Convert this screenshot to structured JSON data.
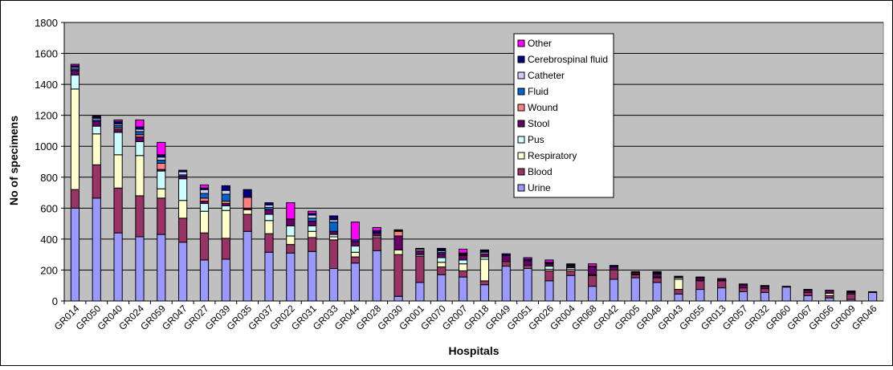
{
  "chart_data": {
    "type": "bar",
    "stacked": true,
    "title": "",
    "xlabel": "Hospitals",
    "ylabel": "No of specimens",
    "ylim": [
      0,
      1800
    ],
    "yticks": [
      0,
      200,
      400,
      600,
      800,
      1000,
      1200,
      1400,
      1600,
      1800
    ],
    "grid": "horizontal",
    "plot_background": "#C0C0C0",
    "legend_position": "top-right (inside plot)",
    "categories": [
      "GR014",
      "GR050",
      "GR040",
      "GR024",
      "GR059",
      "GR047",
      "GR027",
      "GR039",
      "GR035",
      "GR037",
      "GR022",
      "GR031",
      "GR033",
      "GR044",
      "GR028",
      "GR030",
      "GR001",
      "GR070",
      "GR007",
      "GR018",
      "GR049",
      "GR051",
      "GR026",
      "GR004",
      "GR068",
      "GR042",
      "GR005",
      "GR048",
      "GR043",
      "GR055",
      "GR013",
      "GR057",
      "GR032",
      "GR060",
      "GR067",
      "GR056",
      "GR009",
      "GR046"
    ],
    "series": [
      {
        "name": "Urine",
        "color": "#9999FF",
        "values": [
          600,
          665,
          440,
          415,
          430,
          380,
          265,
          270,
          450,
          315,
          310,
          320,
          210,
          245,
          325,
          30,
          120,
          170,
          155,
          105,
          225,
          210,
          130,
          165,
          95,
          140,
          150,
          120,
          45,
          75,
          85,
          60,
          55,
          90,
          35,
          20,
          10,
          55
        ]
      },
      {
        "name": "Blood",
        "color": "#993366",
        "values": [
          120,
          215,
          290,
          265,
          235,
          155,
          175,
          135,
          110,
          120,
          55,
          90,
          185,
          40,
          85,
          270,
          170,
          50,
          40,
          25,
          30,
          20,
          65,
          30,
          70,
          60,
          20,
          30,
          30,
          55,
          45,
          25,
          25,
          0,
          20,
          15,
          35,
          0
        ]
      },
      {
        "name": "Respiratory",
        "color": "#FFFFCC",
        "values": [
          650,
          200,
          215,
          260,
          60,
          115,
          140,
          180,
          30,
          85,
          55,
          40,
          20,
          30,
          10,
          30,
          0,
          30,
          45,
          140,
          0,
          0,
          10,
          10,
          0,
          0,
          5,
          0,
          65,
          0,
          0,
          0,
          0,
          0,
          0,
          15,
          0,
          0
        ]
      },
      {
        "name": "Pus",
        "color": "#CCFFFF",
        "values": [
          90,
          50,
          145,
          90,
          115,
          140,
          50,
          30,
          0,
          40,
          65,
          35,
          15,
          40,
          0,
          0,
          10,
          30,
          25,
          15,
          0,
          0,
          20,
          10,
          5,
          0,
          0,
          5,
          10,
          5,
          5,
          0,
          0,
          0,
          0,
          0,
          0,
          0
        ]
      },
      {
        "name": "Stool",
        "color": "#660066",
        "values": [
          30,
          30,
          20,
          30,
          10,
          15,
          15,
          15,
          10,
          30,
          45,
          30,
          20,
          30,
          20,
          90,
          25,
          25,
          30,
          20,
          40,
          30,
          15,
          10,
          50,
          20,
          10,
          20,
          5,
          15,
          10,
          20,
          15,
          5,
          15,
          20,
          10,
          5
        ]
      },
      {
        "name": "Wound",
        "color": "#FF8080",
        "values": [
          0,
          0,
          10,
          15,
          40,
          0,
          20,
          15,
          70,
          0,
          0,
          0,
          0,
          0,
          0,
          30,
          0,
          0,
          0,
          0,
          0,
          0,
          0,
          0,
          0,
          0,
          0,
          0,
          0,
          0,
          0,
          0,
          0,
          0,
          0,
          0,
          0,
          0
        ]
      },
      {
        "name": "Fluid",
        "color": "#0066CC",
        "values": [
          10,
          10,
          15,
          20,
          20,
          10,
          30,
          45,
          0,
          15,
          0,
          20,
          60,
          10,
          0,
          5,
          0,
          10,
          5,
          0,
          0,
          0,
          5,
          5,
          0,
          0,
          0,
          5,
          0,
          0,
          0,
          0,
          0,
          0,
          0,
          0,
          5,
          0
        ]
      },
      {
        "name": "Catheter",
        "color": "#CCCCFF",
        "values": [
          10,
          10,
          10,
          15,
          20,
          20,
          25,
          25,
          0,
          15,
          0,
          20,
          15,
          0,
          0,
          0,
          10,
          10,
          5,
          10,
          0,
          0,
          5,
          5,
          5,
          0,
          0,
          5,
          0,
          0,
          0,
          0,
          0,
          0,
          0,
          0,
          0,
          0
        ]
      },
      {
        "name": "Cerebrospinal fluid",
        "color": "#000080",
        "values": [
          10,
          10,
          15,
          15,
          15,
          10,
          10,
          30,
          50,
          15,
          0,
          10,
          25,
          0,
          15,
          0,
          5,
          10,
          5,
          10,
          10,
          10,
          0,
          0,
          0,
          10,
          5,
          0,
          5,
          5,
          0,
          5,
          5,
          0,
          0,
          0,
          0,
          0
        ]
      },
      {
        "name": "Other",
        "color": "#FF00FF",
        "values": [
          10,
          5,
          10,
          45,
          80,
          0,
          20,
          0,
          0,
          0,
          105,
          15,
          0,
          115,
          20,
          5,
          0,
          5,
          25,
          5,
          0,
          10,
          15,
          5,
          15,
          0,
          0,
          5,
          0,
          0,
          0,
          0,
          0,
          0,
          5,
          0,
          5,
          0
        ]
      }
    ]
  }
}
